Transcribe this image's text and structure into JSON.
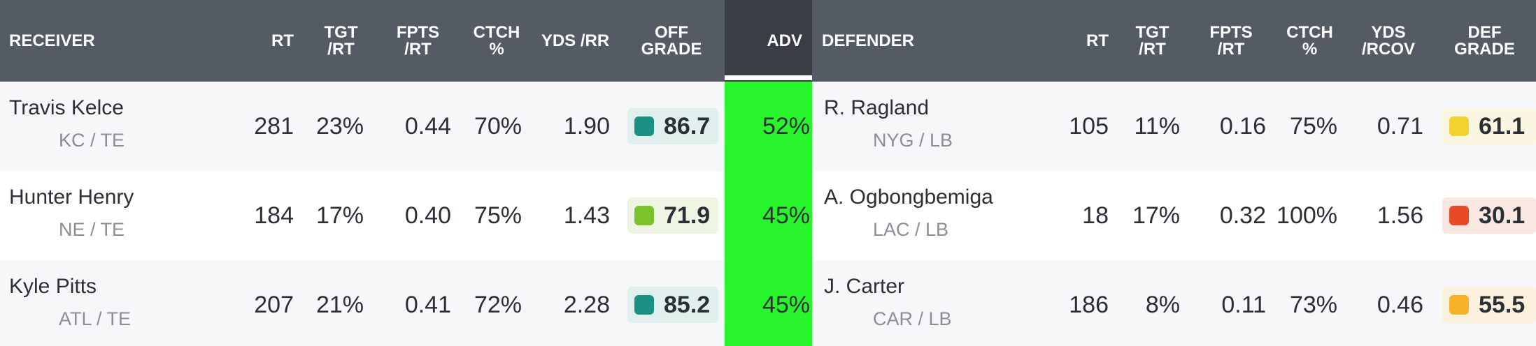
{
  "headers": {
    "receiver": "RECEIVER",
    "rt": "RT",
    "tgt_rt": "TGT\n/RT",
    "fpts_rt": "FPTS\n/RT",
    "ctch": "CTCH\n%",
    "yds_rr": "YDS /RR",
    "off_grade": "OFF\nGRADE",
    "adv": "ADV",
    "defender": "DEFENDER",
    "d_rt": "RT",
    "d_tgt_rt": "TGT\n/RT",
    "d_fpts_rt": "FPTS\n/RT",
    "d_ctch": "CTCH\n%",
    "d_yds_rcov": "YDS\n/RCOV",
    "def_grade": "DEF\nGRADE"
  },
  "colors": {
    "header_bg": "#555b64",
    "adv_header_bg": "#3a3e44",
    "adv_bg": "#29f52c"
  },
  "rows": [
    {
      "receiver": {
        "name": "Travis Kelce",
        "team_pos": "KC / TE",
        "rt": "281",
        "tgt_rt": "23%",
        "fpts_rt": "0.44",
        "ctch": "70%",
        "yds_rr": "1.90",
        "grade": "86.7",
        "grade_color": "#1a9080",
        "grade_bg": "#e1efed"
      },
      "adv": "52%",
      "defender": {
        "name": "R. Ragland",
        "team_pos": "NYG / LB",
        "rt": "105",
        "tgt_rt": "11%",
        "fpts_rt": "0.16",
        "ctch": "75%",
        "yds_rcov": "0.71",
        "grade": "61.1",
        "grade_color": "#f2d22e",
        "grade_bg": "#fbf6e1"
      }
    },
    {
      "receiver": {
        "name": "Hunter Henry",
        "team_pos": "NE / TE",
        "rt": "184",
        "tgt_rt": "17%",
        "fpts_rt": "0.40",
        "ctch": "75%",
        "yds_rr": "1.43",
        "grade": "71.9",
        "grade_color": "#7cc22b",
        "grade_bg": "#eef6e3"
      },
      "adv": "45%",
      "defender": {
        "name": "A. Ogbongbemiga",
        "team_pos": "LAC / LB",
        "rt": "18",
        "tgt_rt": "17%",
        "fpts_rt": "0.32",
        "ctch": "100%",
        "yds_rcov": "1.56",
        "grade": "30.1",
        "grade_color": "#e84a27",
        "grade_bg": "#fbe7e2"
      }
    },
    {
      "receiver": {
        "name": "Kyle Pitts",
        "team_pos": "ATL / TE",
        "rt": "207",
        "tgt_rt": "21%",
        "fpts_rt": "0.41",
        "ctch": "72%",
        "yds_rr": "2.28",
        "grade": "85.2",
        "grade_color": "#1a9080",
        "grade_bg": "#e1efed"
      },
      "adv": "45%",
      "defender": {
        "name": "J. Carter",
        "team_pos": "CAR / LB",
        "rt": "186",
        "tgt_rt": "8%",
        "fpts_rt": "0.11",
        "ctch": "73%",
        "yds_rcov": "0.46",
        "grade": "55.5",
        "grade_color": "#f7b22a",
        "grade_bg": "#fcf1df"
      }
    }
  ]
}
